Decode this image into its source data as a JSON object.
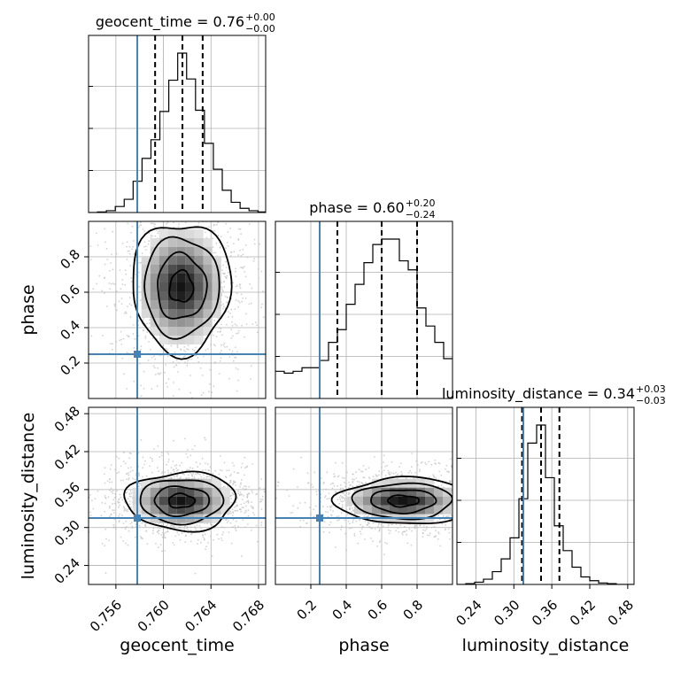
{
  "chart_data": {
    "type": "corner",
    "parameters": [
      "geocent_time",
      "phase",
      "luminosity_distance"
    ],
    "truths": {
      "geocent_time": 0.7578,
      "phase": 0.25,
      "luminosity_distance": 0.315
    },
    "truth_color": "#4682b4",
    "grid": true,
    "diagonal": [
      {
        "param": "geocent_time",
        "title_main": "geocent_time = 0.76",
        "title_upper": "+0.00",
        "title_lower": "−0.00",
        "median": 0.7616,
        "q16": 0.7593,
        "q84": 0.7633,
        "xlim": [
          0.7537,
          0.7686
        ],
        "histogram": {
          "bin_edges": [
            0.7537,
            0.75445,
            0.7552,
            0.75595,
            0.7567,
            0.75745,
            0.7582,
            0.75895,
            0.7597,
            0.76045,
            0.7612,
            0.76195,
            0.7627,
            0.76345,
            0.7642,
            0.76495,
            0.7657,
            0.76645,
            0.7672,
            0.76795,
            0.7687
          ],
          "counts": [
            0,
            1,
            3,
            10,
            22,
            52,
            90,
            121,
            168,
            220,
            265,
            222,
            170,
            115,
            72,
            37,
            17,
            7,
            3,
            1
          ]
        }
      },
      {
        "param": "phase",
        "title_main": "phase = 0.60",
        "title_upper": "+0.20",
        "title_lower": "−0.24",
        "median": 0.6,
        "q16": 0.35,
        "q84": 0.8,
        "xlim": [
          0.0,
          1.0
        ],
        "histogram": {
          "bin_edges": [
            0,
            0.05,
            0.1,
            0.15,
            0.2,
            0.25,
            0.3,
            0.35,
            0.4,
            0.45,
            0.5,
            0.55,
            0.6,
            0.65,
            0.7,
            0.75,
            0.8,
            0.85,
            0.9,
            0.95,
            1.0
          ],
          "counts": [
            15,
            14,
            15,
            17,
            17,
            21,
            31,
            38,
            52,
            63,
            75,
            85,
            88,
            88,
            76,
            71,
            50,
            40,
            31,
            22
          ]
        }
      },
      {
        "param": "luminosity_distance",
        "title_main": "luminosity_distance = 0.34",
        "title_upper": "+0.03",
        "title_lower": "−0.03",
        "median": 0.343,
        "q16": 0.313,
        "q84": 0.372,
        "xlim": [
          0.21,
          0.49
        ],
        "histogram": {
          "bin_edges": [
            0.21,
            0.224,
            0.238,
            0.252,
            0.266,
            0.28,
            0.294,
            0.308,
            0.322,
            0.336,
            0.35,
            0.364,
            0.378,
            0.392,
            0.406,
            0.42,
            0.434,
            0.448,
            0.462,
            0.476,
            0.49
          ],
          "counts": [
            0,
            1,
            3,
            7,
            17,
            34,
            62,
            114,
            188,
            212,
            142,
            78,
            45,
            23,
            10,
            5,
            2,
            1,
            0,
            0
          ]
        }
      }
    ],
    "panels_2d": [
      {
        "x": "geocent_time",
        "y": "phase",
        "xlim": [
          0.7537,
          0.7686
        ],
        "ylim": [
          0.0,
          1.0
        ],
        "center": [
          0.7615,
          0.63
        ],
        "spread": [
          0.0018,
          0.16
        ]
      },
      {
        "x": "geocent_time",
        "y": "luminosity_distance",
        "xlim": [
          0.7537,
          0.7686
        ],
        "ylim": [
          0.21,
          0.49
        ],
        "center": [
          0.7615,
          0.342
        ],
        "spread": [
          0.002,
          0.02
        ]
      },
      {
        "x": "phase",
        "y": "luminosity_distance",
        "xlim": [
          0.0,
          1.0
        ],
        "ylim": [
          0.21,
          0.49
        ],
        "center": [
          0.72,
          0.342
        ],
        "spread": [
          0.16,
          0.016
        ]
      }
    ],
    "ticks": {
      "geocent_time": {
        "values": [
          0.756,
          0.76,
          0.764,
          0.768
        ],
        "labels": [
          "0.756",
          "0.760",
          "0.764",
          "0.768"
        ]
      },
      "phase": {
        "values": [
          0.2,
          0.4,
          0.6,
          0.8
        ],
        "labels": [
          "0.2",
          "0.4",
          "0.6",
          "0.8"
        ]
      },
      "luminosity_distance": {
        "values": [
          0.24,
          0.3,
          0.36,
          0.42,
          0.48
        ],
        "labels": [
          "0.24",
          "0.30",
          "0.36",
          "0.42",
          "0.48"
        ]
      }
    },
    "axis_labels": {
      "geocent_time": "geocent_time",
      "phase": "phase",
      "luminosity_distance": "luminosity_distance"
    }
  }
}
